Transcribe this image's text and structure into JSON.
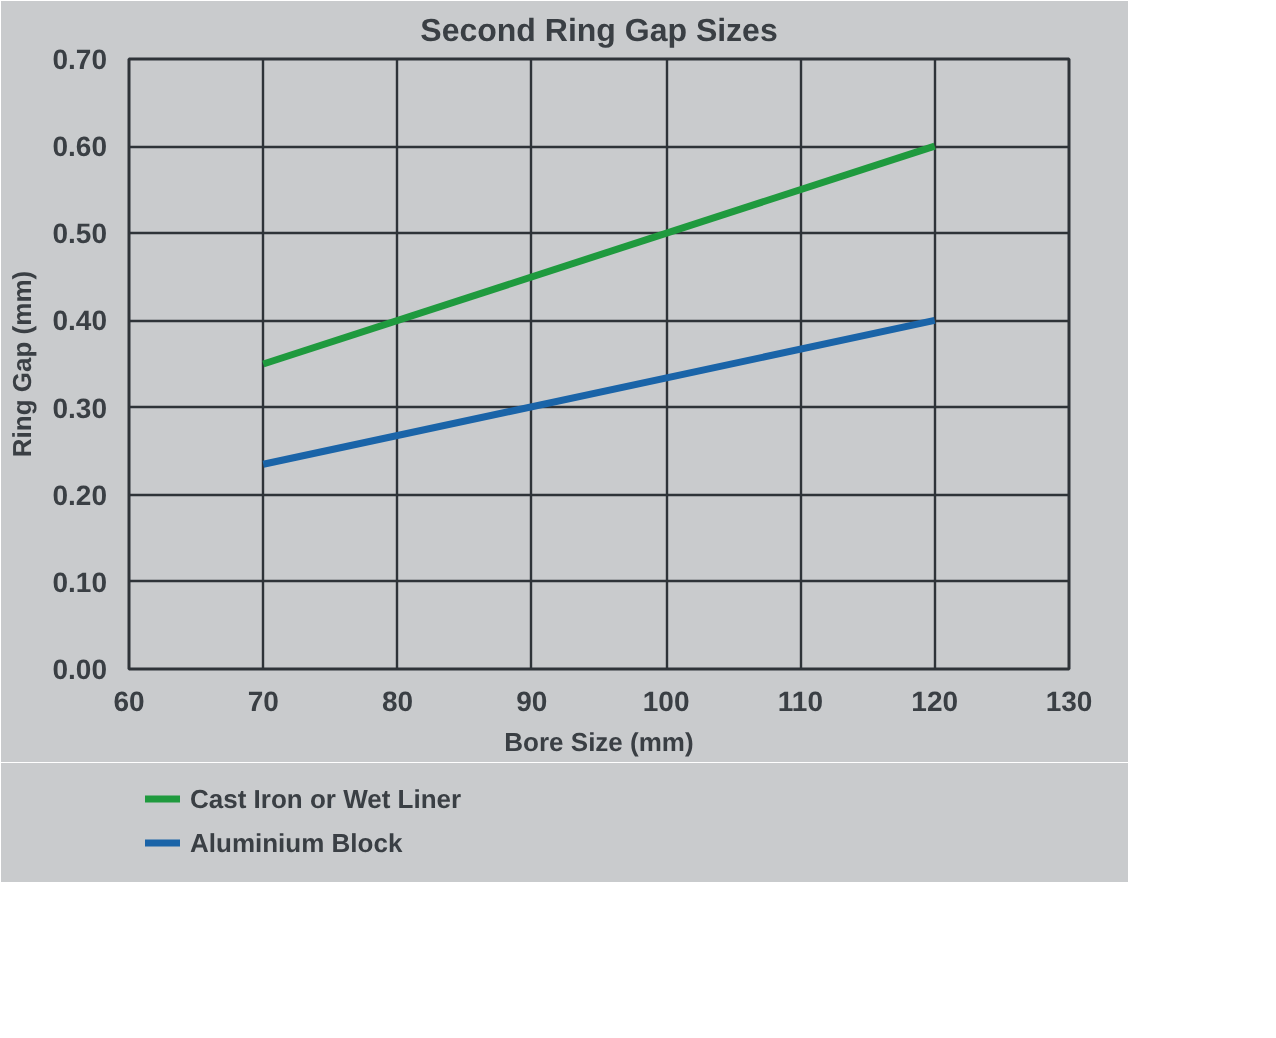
{
  "chart_data": {
    "type": "line",
    "title": "Second Ring Gap Sizes",
    "xlabel": "Bore Size (mm)",
    "ylabel": "Ring Gap (mm)",
    "x": [
      70,
      120
    ],
    "series": [
      {
        "name": "Cast Iron or Wet Liner",
        "color": "#1f9a3e",
        "values": [
          0.35,
          0.6
        ]
      },
      {
        "name": "Aluminium Block",
        "color": "#1a64a8",
        "values": [
          0.235,
          0.4
        ]
      }
    ],
    "xlim": [
      60,
      130
    ],
    "xticks": [
      60,
      70,
      80,
      90,
      100,
      110,
      120,
      130
    ],
    "ylim": [
      0,
      0.7
    ],
    "yticks": [
      {
        "value": 0,
        "label": "0.00"
      },
      {
        "value": 0.1,
        "label": "0.10"
      },
      {
        "value": 0.2,
        "label": "0.20"
      },
      {
        "value": 0.3,
        "label": "0.30"
      },
      {
        "value": 0.4,
        "label": "0.40"
      },
      {
        "value": 0.5,
        "label": "0.50"
      },
      {
        "value": 0.6,
        "label": "0.60"
      },
      {
        "value": 0.7,
        "label": "0.70"
      }
    ],
    "grid": true,
    "legend": "bottom left",
    "marker": "none",
    "line_style": "solid"
  }
}
